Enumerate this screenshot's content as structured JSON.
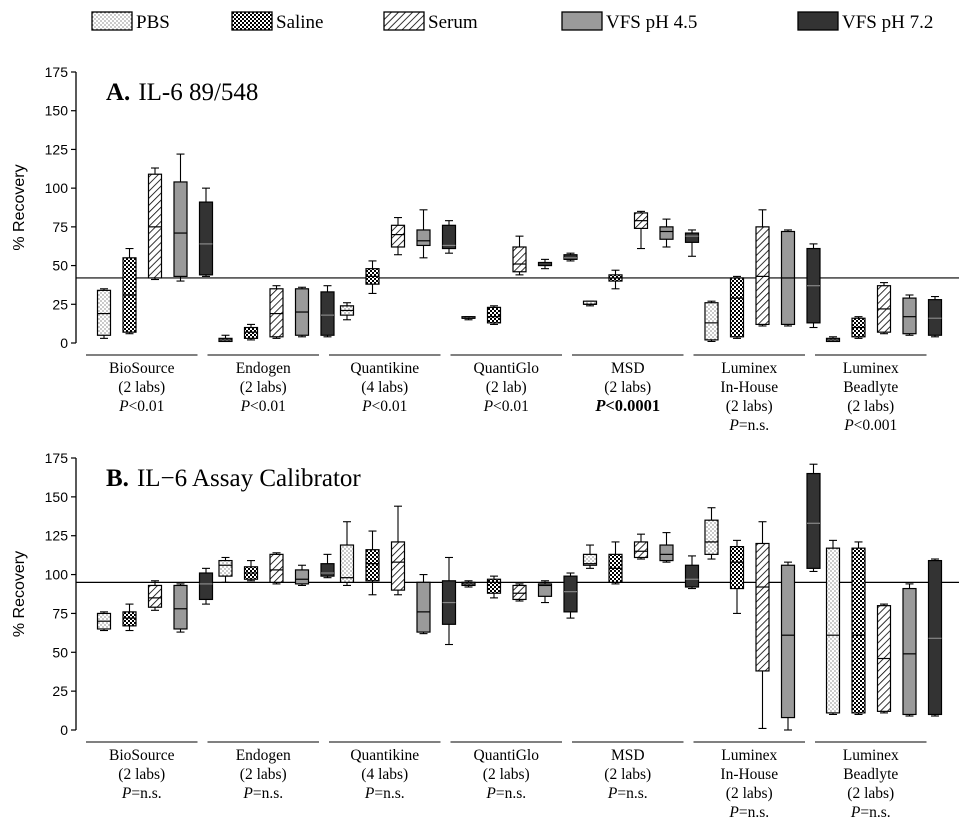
{
  "legend": [
    {
      "name": "PBS",
      "pattern": "dots"
    },
    {
      "name": "Saline",
      "pattern": "check"
    },
    {
      "name": "Serum",
      "pattern": "hatch"
    },
    {
      "name": "VFS pH 4.5",
      "pattern": "gray"
    },
    {
      "name": "VFS pH 7.2",
      "pattern": "dark"
    }
  ],
  "colors": {
    "gray": "#9a9a9a",
    "dark": "#333333",
    "line": "#000000"
  },
  "chart_data": [
    {
      "type": "box",
      "panel_label": "A.",
      "panel_title": "IL-6 89/548",
      "ylabel": "% Recovery",
      "ylim": [
        0,
        175
      ],
      "yticks": [
        "0",
        "25",
        "50",
        "75",
        "100",
        "125",
        "150",
        "175"
      ],
      "reference_line": 42,
      "series": [
        "PBS",
        "Saline",
        "Serum",
        "VFS pH 4.5",
        "VFS pH 7.2"
      ],
      "groups": [
        {
          "label": [
            "BioSource",
            "(2 labs)"
          ],
          "p_prefix": "P",
          "p_value": "<0.01",
          "strong": false,
          "boxes": [
            [
              3,
              5,
              19,
              34,
              35
            ],
            [
              6,
              7,
              31,
              55,
              61
            ],
            [
              41,
              42,
              75,
              109,
              113
            ],
            [
              40,
              43,
              71,
              104,
              122
            ],
            [
              43,
              44,
              64,
              91,
              100
            ]
          ]
        },
        {
          "label": [
            "Endogen",
            "(2 labs)"
          ],
          "p_prefix": "P",
          "p_value": "<0.01",
          "strong": false,
          "boxes": [
            [
              1,
              1,
              2,
              3,
              5
            ],
            [
              2,
              3,
              7,
              10,
              12
            ],
            [
              3,
              4,
              19,
              35,
              37
            ],
            [
              4,
              5,
              20,
              35,
              36
            ],
            [
              4,
              5,
              18,
              33,
              37
            ]
          ]
        },
        {
          "label": [
            "Quantikine",
            "(4  labs)"
          ],
          "p_prefix": "P",
          "p_value": "<0.01",
          "strong": false,
          "boxes": [
            [
              15,
              18,
              21,
              24,
              26
            ],
            [
              32,
              38,
              43,
              48,
              53
            ],
            [
              57,
              62,
              70,
              76,
              81
            ],
            [
              55,
              63,
              66,
              73,
              86
            ],
            [
              58,
              61,
              63,
              76,
              79
            ]
          ]
        },
        {
          "label": [
            "QuantiGlo",
            "(2 lab)"
          ],
          "p_prefix": "P",
          "p_value": "<0.01",
          "strong": false,
          "boxes": [
            [
              15,
              16,
              16,
              17,
              17
            ],
            [
              12,
              13,
              17,
              23,
              24
            ],
            [
              44,
              46,
              51,
              62,
              69
            ],
            [
              48,
              50,
              51,
              52,
              54
            ],
            [
              53,
              54,
              55,
              57,
              58
            ]
          ]
        },
        {
          "label": [
            "MSD",
            "(2 labs)"
          ],
          "p_prefix": "P",
          "p_value": "<0.0001",
          "strong": true,
          "boxes": [
            [
              24,
              25,
              25,
              27,
              27
            ],
            [
              35,
              40,
              42,
              44,
              47
            ],
            [
              61,
              74,
              79,
              84,
              85
            ],
            [
              62,
              67,
              72,
              75,
              80
            ],
            [
              56,
              65,
              69,
              71,
              73
            ]
          ]
        },
        {
          "label": [
            "Luminex",
            "In-House",
            "(2 labs)"
          ],
          "p_prefix": "P",
          "p_value": "=n.s.",
          "strong": false,
          "boxes": [
            [
              1,
              2,
              13,
              26,
              27
            ],
            [
              3,
              4,
              29,
              42,
              43
            ],
            [
              11,
              12,
              43,
              75,
              86
            ],
            [
              11,
              12,
              42,
              72,
              73
            ],
            [
              10,
              13,
              37,
              61,
              64
            ]
          ]
        },
        {
          "label": [
            "Luminex",
            "Beadlyte",
            "(2 labs)"
          ],
          "p_prefix": "P",
          "p_value": "<0.001",
          "strong": false,
          "boxes": [
            [
              1,
              1,
              2,
              3,
              4
            ],
            [
              3,
              4,
              10,
              16,
              17
            ],
            [
              6,
              7,
              22,
              37,
              39
            ],
            [
              5,
              6,
              17,
              29,
              31
            ],
            [
              4,
              5,
              16,
              28,
              30
            ]
          ]
        }
      ]
    },
    {
      "type": "box",
      "panel_label": "B.",
      "panel_title": "IL−6 Assay Calibrator",
      "ylabel": "% Recovery",
      "ylim": [
        0,
        175
      ],
      "yticks": [
        "0",
        "25",
        "50",
        "75",
        "100",
        "125",
        "150",
        "175"
      ],
      "reference_line": 95,
      "series": [
        "PBS",
        "Saline",
        "Serum",
        "VFS pH 4.5",
        "VFS pH 7.2"
      ],
      "groups": [
        {
          "label": [
            "BioSource",
            "(2 labs)"
          ],
          "p_prefix": "P",
          "p_value": "=n.s.",
          "strong": false,
          "boxes": [
            [
              64,
              65,
              70,
              75,
              76
            ],
            [
              64,
              67,
              72,
              76,
              81
            ],
            [
              77,
              79,
              85,
              93,
              96
            ],
            [
              63,
              65,
              78,
              93,
              94
            ],
            [
              81,
              84,
              94,
              101,
              104
            ]
          ]
        },
        {
          "label": [
            "Endogen",
            "(2 labs)"
          ],
          "p_prefix": "P",
          "p_value": "=n.s.",
          "strong": false,
          "boxes": [
            [
              95,
              99,
              106,
              109,
              111
            ],
            [
              96,
              97,
              101,
              105,
              109
            ],
            [
              94,
              95,
              103,
              113,
              114
            ],
            [
              93,
              94,
              97,
              103,
              106
            ],
            [
              98,
              99,
              101,
              107,
              113
            ]
          ]
        },
        {
          "label": [
            "Quantikine",
            "(4  labs)"
          ],
          "p_prefix": "P",
          "p_value": "=n.s.",
          "strong": false,
          "boxes": [
            [
              93,
              95,
              98,
              119,
              134
            ],
            [
              87,
              96,
              107,
              116,
              128
            ],
            [
              87,
              90,
              108,
              121,
              144
            ],
            [
              62,
              63,
              76,
              95,
              100
            ],
            [
              55,
              68,
              82,
              96,
              111
            ]
          ]
        },
        {
          "label": [
            "QuantiGlo",
            "(2 labs)"
          ],
          "p_prefix": "P",
          "p_value": "=n.s.",
          "strong": false,
          "boxes": [
            [
              92,
              93,
              94,
              95,
              96
            ],
            [
              85,
              88,
              95,
              97,
              99
            ],
            [
              83,
              84,
              88,
              93,
              94
            ],
            [
              82,
              86,
              93,
              94,
              96
            ],
            [
              72,
              76,
              89,
              99,
              101
            ]
          ]
        },
        {
          "label": [
            "MSD",
            "(2 labs)"
          ],
          "p_prefix": "P",
          "p_value": "=n.s.",
          "strong": false,
          "boxes": [
            [
              104,
              106,
              107,
              113,
              119
            ],
            [
              94,
              95,
              104,
              113,
              121
            ],
            [
              110,
              111,
              115,
              121,
              126
            ],
            [
              108,
              109,
              113,
              119,
              127
            ],
            [
              91,
              92,
              97,
              106,
              112
            ]
          ]
        },
        {
          "label": [
            "Luminex",
            "In-House",
            "(2 labs)"
          ],
          "p_prefix": "P",
          "p_value": "=n.s.",
          "strong": false,
          "boxes": [
            [
              110,
              113,
              121,
              135,
              143
            ],
            [
              75,
              91,
              108,
              118,
              122
            ],
            [
              1,
              38,
              92,
              120,
              134
            ],
            [
              0,
              8,
              61,
              106,
              108
            ],
            [
              102,
              104,
              133,
              165,
              171
            ]
          ]
        },
        {
          "label": [
            "Luminex",
            "Beadlyte",
            "(2 labs)"
          ],
          "p_prefix": "P",
          "p_value": "=n.s.",
          "strong": false,
          "boxes": [
            [
              10,
              11,
              61,
              117,
              122
            ],
            [
              10,
              11,
              61,
              117,
              121
            ],
            [
              11,
              12,
              46,
              80,
              81
            ],
            [
              9,
              10,
              49,
              91,
              94
            ],
            [
              9,
              10,
              59,
              109,
              110
            ]
          ]
        }
      ]
    }
  ]
}
